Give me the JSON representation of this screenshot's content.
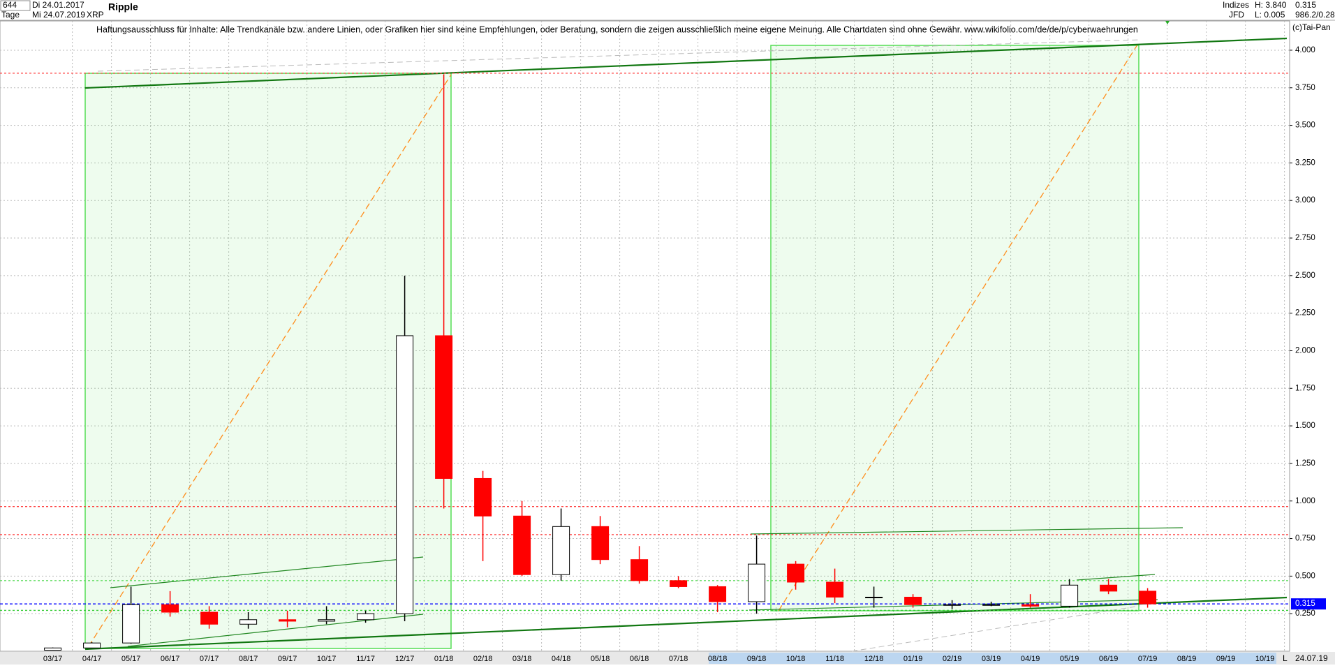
{
  "header": {
    "count": "644",
    "start_date": "Di 24.01.2017",
    "period": "Tage",
    "end_date": "Mi 24.07.2019",
    "symbol": "XRP",
    "group": "Indizes",
    "source": "JFD",
    "high": "H: 3.840",
    "low": "L: 0.005",
    "extra": "986.2/0.28",
    "copyright": "(c)Tai-Pan",
    "disclaimer": "Haftungsausschluss für Inhalte: Alle Trendkanäle bzw. andere Linien, oder Grafiken hier sind keine Empfehlungen, oder Beratung, sondern die zeigen ausschließlich meine eigene Meinung. Alle Chartdaten sind ohne Gewähr.  www.wikifolio.com/de/de/p/cyberwaehrungen",
    "footer_mode": "L",
    "footer_date": "24.07.19"
  },
  "chart_data": {
    "type": "candlestick",
    "title": "Ripple",
    "categories": [
      "03/17",
      "04/17",
      "05/17",
      "06/17",
      "07/17",
      "08/17",
      "09/17",
      "10/17",
      "11/17",
      "12/17",
      "01/18",
      "02/18",
      "03/18",
      "04/18",
      "05/18",
      "06/18",
      "07/18",
      "08/18",
      "09/18",
      "10/18",
      "11/18",
      "12/18",
      "01/19",
      "02/19",
      "03/19",
      "04/19",
      "05/19",
      "06/19",
      "07/19",
      "08/19",
      "09/19",
      "10/19"
    ],
    "x": [
      "03/17",
      "04/17",
      "05/17",
      "06/17",
      "07/17",
      "08/17",
      "09/17",
      "10/17",
      "11/17",
      "12/17",
      "01/18",
      "02/18",
      "03/18",
      "04/18",
      "05/18",
      "06/18",
      "07/18",
      "08/18",
      "09/18",
      "10/18",
      "11/18",
      "12/18",
      "01/19",
      "02/19",
      "03/19",
      "04/19",
      "05/19",
      "06/19",
      "07/19"
    ],
    "open": [
      0.007,
      0.022,
      0.055,
      0.31,
      0.26,
      0.18,
      0.21,
      0.2,
      0.21,
      0.25,
      2.1,
      1.15,
      0.9,
      0.51,
      0.83,
      0.61,
      0.47,
      0.43,
      0.33,
      0.58,
      0.46,
      0.36,
      0.36,
      0.31,
      0.31,
      0.31,
      0.3,
      0.44,
      0.4
    ],
    "high": [
      0.025,
      0.06,
      0.43,
      0.4,
      0.3,
      0.26,
      0.27,
      0.3,
      0.27,
      2.5,
      3.84,
      1.2,
      1.0,
      0.95,
      0.9,
      0.7,
      0.5,
      0.44,
      0.77,
      0.6,
      0.55,
      0.43,
      0.38,
      0.34,
      0.33,
      0.38,
      0.48,
      0.48,
      0.42
    ],
    "low": [
      0.006,
      0.02,
      0.05,
      0.23,
      0.15,
      0.15,
      0.16,
      0.18,
      0.19,
      0.2,
      0.95,
      0.6,
      0.5,
      0.47,
      0.58,
      0.45,
      0.42,
      0.26,
      0.25,
      0.41,
      0.32,
      0.29,
      0.29,
      0.28,
      0.3,
      0.29,
      0.29,
      0.38,
      0.29
    ],
    "close": [
      0.022,
      0.055,
      0.31,
      0.26,
      0.18,
      0.21,
      0.2,
      0.21,
      0.25,
      2.1,
      1.15,
      0.9,
      0.51,
      0.83,
      0.61,
      0.47,
      0.43,
      0.33,
      0.58,
      0.46,
      0.36,
      0.36,
      0.31,
      0.31,
      0.31,
      0.3,
      0.44,
      0.4,
      0.315
    ],
    "up_color": "#000000",
    "down_color": "#ff0000",
    "ylim": [
      0,
      4.232
    ],
    "yticks": [
      {
        "value": 0.25,
        "label": "0.250"
      },
      {
        "value": 0.5,
        "label": "0.500"
      },
      {
        "value": 0.75,
        "label": "0.750"
      },
      {
        "value": 1,
        "label": "1.000"
      },
      {
        "value": 1.25,
        "label": "1.250"
      },
      {
        "value": 1.5,
        "label": "1.500"
      },
      {
        "value": 1.75,
        "label": "1.750"
      },
      {
        "value": 2,
        "label": "2.000"
      },
      {
        "value": 2.25,
        "label": "2.250"
      },
      {
        "value": 2.5,
        "label": "2.500"
      },
      {
        "value": 2.75,
        "label": "2.750"
      },
      {
        "value": 3,
        "label": "3.000"
      },
      {
        "value": 3.25,
        "label": "3.250"
      },
      {
        "value": 3.5,
        "label": "3.500"
      },
      {
        "value": 3.75,
        "label": "3.750"
      },
      {
        "value": 4,
        "label": "4.000"
      }
    ],
    "grid": true,
    "hlines": [
      {
        "value": 3.847,
        "color": "#ff4040"
      },
      {
        "value": 0.963,
        "color": "#ff4040"
      },
      {
        "value": 0.776,
        "color": "#ff4040"
      },
      {
        "value": 0.47,
        "color": "#66dd66"
      },
      {
        "value": 0.272,
        "color": "#33cc33"
      }
    ],
    "last_price": 0.315,
    "last_color": "#0000ff"
  }
}
